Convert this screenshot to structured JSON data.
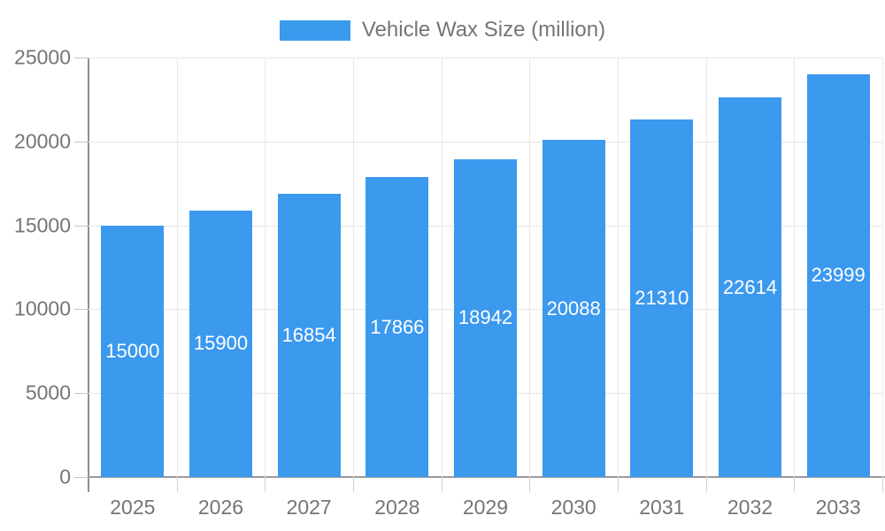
{
  "legend": {
    "label": "Vehicle Wax Size (million)",
    "swatch_color": "#3B99EE"
  },
  "chart_data": {
    "type": "bar",
    "title": "Vehicle Wax Size (million)",
    "series_name": "Vehicle Wax Size (million)",
    "categories": [
      "2025",
      "2026",
      "2027",
      "2028",
      "2029",
      "2030",
      "2031",
      "2032",
      "2033"
    ],
    "values": [
      15000,
      15900,
      16854,
      17866,
      18942,
      20088,
      21310,
      22614,
      23999
    ],
    "xlabel": "",
    "ylabel": "",
    "ylim": [
      0,
      25000
    ],
    "yticks": [
      0,
      5000,
      10000,
      15000,
      20000,
      25000
    ],
    "grid": true,
    "legend_position": "top",
    "bar_color": "#3B99EE",
    "bar_label_color": "#ffffff",
    "axis_text_color": "#757575"
  }
}
